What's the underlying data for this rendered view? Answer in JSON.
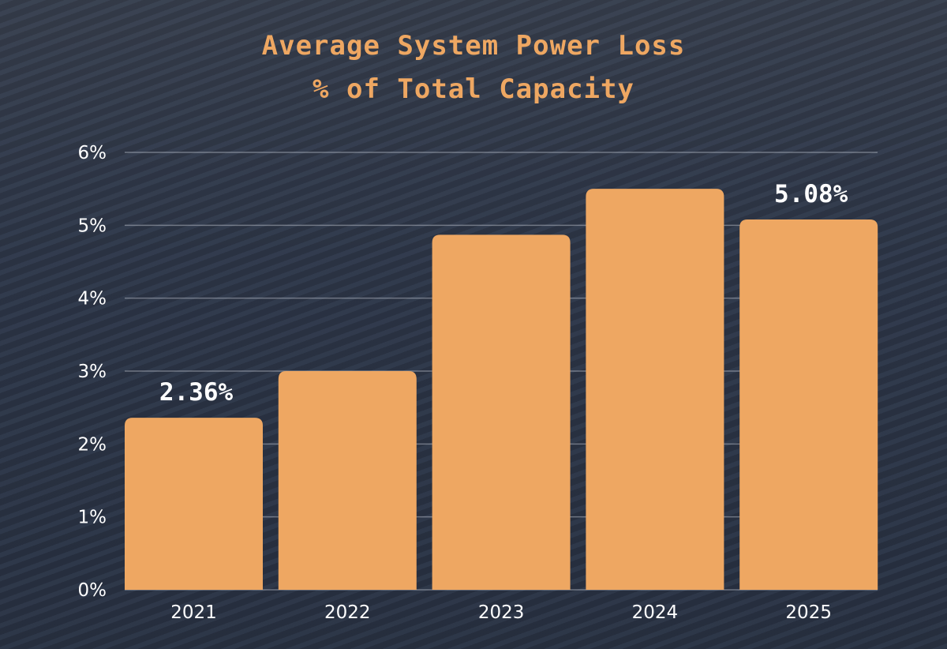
{
  "chart_data": {
    "type": "bar",
    "title": "Average System Power Loss",
    "subtitle": "% of Total Capacity",
    "categories": [
      "2021",
      "2022",
      "2023",
      "2024",
      "2025"
    ],
    "values": [
      2.36,
      3.0,
      4.87,
      5.5,
      5.08
    ],
    "data_labels": [
      "2.36%",
      null,
      null,
      null,
      "5.08%"
    ],
    "ylim": [
      0,
      6
    ],
    "yticks": [
      0,
      1,
      2,
      3,
      4,
      5,
      6
    ],
    "ytick_labels": [
      "0%",
      "1%",
      "2%",
      "3%",
      "4%",
      "5%",
      "6%"
    ],
    "xlabel": "",
    "ylabel": "",
    "grid": true,
    "bar_color": "#eea762",
    "text_color": "#ffffff",
    "title_color": "#eea762"
  }
}
